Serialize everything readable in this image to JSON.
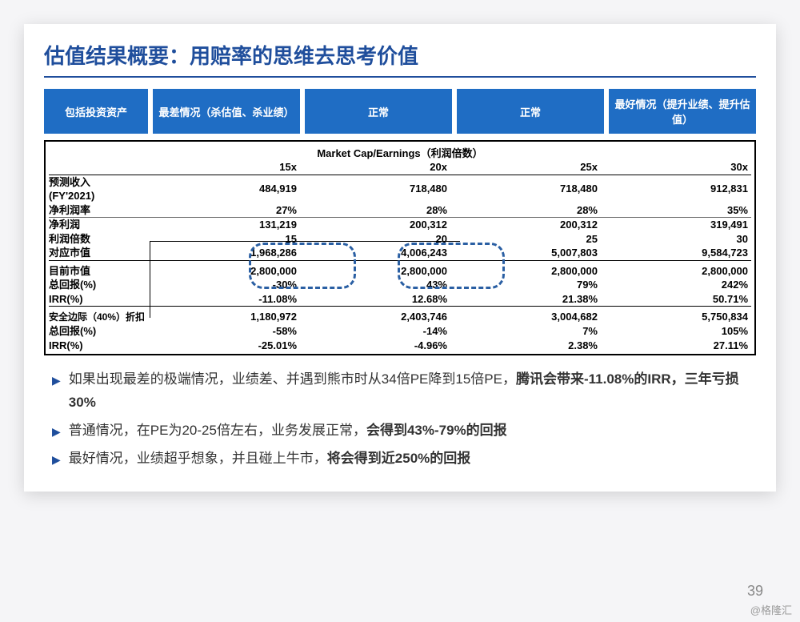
{
  "title": "估值结果概要：用赔率的思维去思考价值",
  "headers": {
    "h0": "包括投资资产",
    "h1": "最差情况（杀估值、杀业绩）",
    "h2": "正常",
    "h3": "正常",
    "h4": "最好情况（提升业绩、提升估值）"
  },
  "table": {
    "section_title": "Market Cap/Earnings（利润倍数）",
    "mult_row": {
      "c1": "15x",
      "c2": "20x",
      "c3": "25x",
      "c4": "30x"
    },
    "rows": [
      {
        "label": "预测收入\n(FY'2021)",
        "c1": "484,919",
        "c2": "718,480",
        "c3": "718,480",
        "c4": "912,831"
      },
      {
        "label": "净利润率",
        "c1": "27%",
        "c2": "28%",
        "c3": "28%",
        "c4": "35%"
      },
      {
        "label": "净利润",
        "c1": "131,219",
        "c2": "200,312",
        "c3": "200,312",
        "c4": "319,491"
      },
      {
        "label": "利润倍数",
        "c1": "15",
        "c2": "20",
        "c3": "25",
        "c4": "30"
      },
      {
        "label": "对应市值",
        "c1": "1,968,286",
        "c2": "4,006,243",
        "c3": "5,007,803",
        "c4": "9,584,723"
      },
      {
        "label": "目前市值",
        "c1": "2,800,000",
        "c2": "2,800,000",
        "c3": "2,800,000",
        "c4": "2,800,000"
      },
      {
        "label": "总回报(%)",
        "c1": "-30%",
        "c2": "43%",
        "c3": "79%",
        "c4": "242%"
      },
      {
        "label": "IRR(%)",
        "c1": "-11.08%",
        "c2": "12.68%",
        "c3": "21.38%",
        "c4": "50.71%"
      },
      {
        "label": "安全边际（40%）折扣",
        "c1": "1,180,972",
        "c2": "2,403,746",
        "c3": "3,004,682",
        "c4": "5,750,834"
      },
      {
        "label": "总回报(%)",
        "c1": "-58%",
        "c2": "-14%",
        "c3": "7%",
        "c4": "105%"
      },
      {
        "label": "IRR(%)",
        "c1": "-25.01%",
        "c2": "-4.96%",
        "c3": "2.38%",
        "c4": "27.11%"
      }
    ]
  },
  "bullets": [
    {
      "pre": "如果出现最差的极端情况，业绩差、并遇到熊市时从34倍PE降到15倍PE，",
      "bold": "腾讯会带来-11.08%的IRR，三年亏损30%"
    },
    {
      "pre": "普通情况，在PE为20-25倍左右，业务发展正常，",
      "bold": "会得到43%-79%的回报"
    },
    {
      "pre": "最好情况，业绩超乎想象，并且碰上牛市，",
      "bold": "将会得到近250%的回报"
    }
  ],
  "page_num": "39",
  "watermark": "@格隆汇",
  "colors": {
    "brand_blue": "#1f4e9c",
    "header_blue": "#1f6dc4",
    "dash_blue": "#2a5fa3",
    "background": "#f5f5f7"
  }
}
